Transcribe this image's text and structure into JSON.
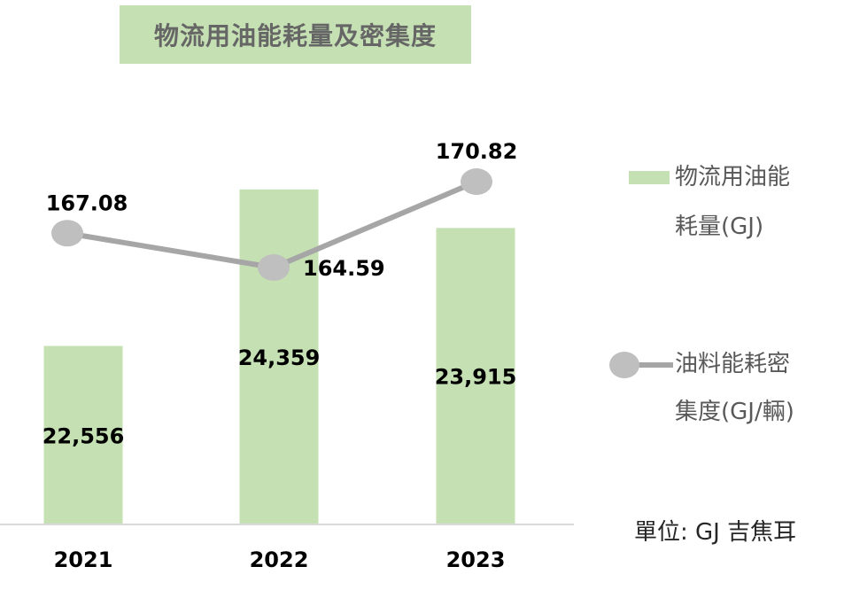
{
  "chart_data": {
    "type": "bar+line",
    "title": "物流用油能耗量及密集度",
    "categories": [
      "2021",
      "2022",
      "2023"
    ],
    "series": [
      {
        "name": "物流用油能耗量(GJ)",
        "type": "bar",
        "values": [
          22556,
          24359,
          23915
        ],
        "labels": [
          "22,556",
          "24,359",
          "23,915"
        ],
        "color": "#c5e0b3"
      },
      {
        "name": "油料能耗密集度(GJ/輛)",
        "type": "line",
        "values": [
          167.08,
          164.59,
          170.82
        ],
        "labels": [
          "167.08",
          "164.59",
          "170.82"
        ],
        "color": "#a6a6a6"
      }
    ],
    "legend": {
      "bar_lines": [
        "物流用油能",
        "耗量(GJ)"
      ],
      "line_lines": [
        "油料能耗密",
        "集度(GJ/輛)"
      ],
      "placement": "right"
    },
    "unit_note": "單位: GJ 吉焦耳",
    "grid": false
  }
}
